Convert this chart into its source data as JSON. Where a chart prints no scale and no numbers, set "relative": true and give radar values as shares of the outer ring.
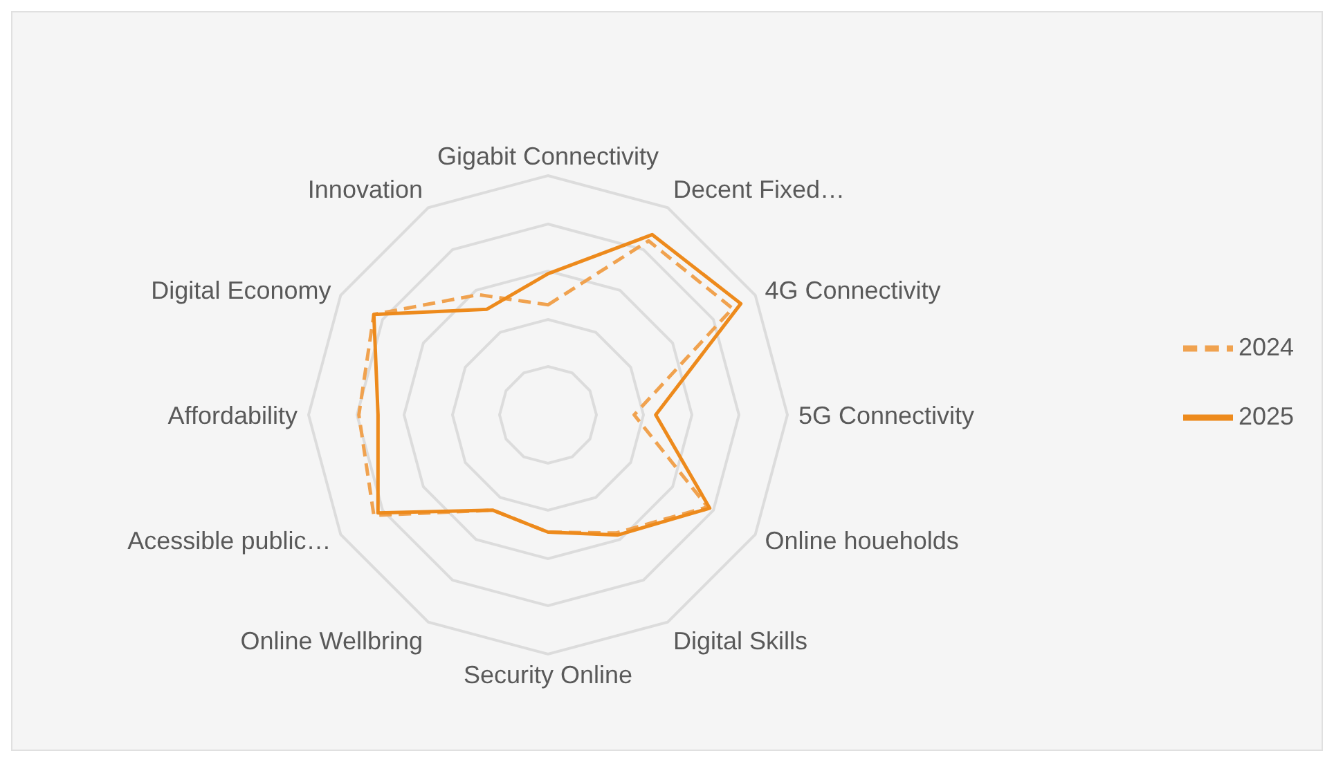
{
  "chart_data": {
    "type": "radar",
    "relative": true,
    "legend": "right",
    "marker": "none",
    "categories": [
      "Gigabit Connectivity",
      "Decent Fixed…",
      "4G Connectivity",
      "5G Connectivity",
      "Online houeholds",
      "Digital Skills",
      "Security Online",
      "Online Wellbring",
      "Acessible public…",
      "Affordability",
      "Digital Economy",
      "Innovation"
    ],
    "series": [
      {
        "name": "2024",
        "color": "#f0a24f",
        "line_style": "dashed",
        "values": [
          0.46,
          0.84,
          0.89,
          0.36,
          0.77,
          0.57,
          0.49,
          0.46,
          0.84,
          0.79,
          0.84,
          0.58
        ]
      },
      {
        "name": "2025",
        "color": "#ed8a1c",
        "line_style": "solid",
        "values": [
          0.59,
          0.87,
          0.93,
          0.45,
          0.78,
          0.58,
          0.49,
          0.46,
          0.82,
          0.71,
          0.84,
          0.51
        ]
      }
    ]
  }
}
